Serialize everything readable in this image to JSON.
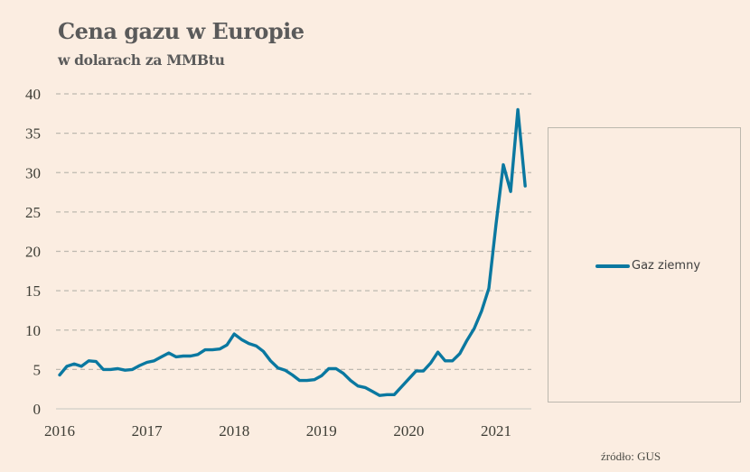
{
  "chart_data": {
    "type": "line",
    "title": "Cena gazu w Europie",
    "subtitle": "w dolarach za MMBtu",
    "xlabel": "",
    "ylabel": "",
    "ylim": [
      0,
      40
    ],
    "yticks": [
      0,
      5,
      10,
      15,
      20,
      25,
      30,
      35,
      40
    ],
    "xticks": [
      "2016",
      "2017",
      "2018",
      "2019",
      "2020",
      "2021"
    ],
    "x_start": "2016-01",
    "x_frequency": "monthly",
    "grid": "horizontal-dashed",
    "legend_position": "right",
    "series": [
      {
        "name": "Gaz ziemny",
        "color": "#0a78a0",
        "values": [
          4.3,
          5.4,
          5.7,
          5.4,
          6.1,
          6.0,
          5.0,
          5.0,
          5.1,
          4.9,
          5.0,
          5.5,
          5.9,
          6.1,
          6.6,
          7.1,
          6.6,
          6.7,
          6.7,
          6.9,
          7.5,
          7.5,
          7.6,
          8.1,
          9.5,
          8.8,
          8.3,
          8.0,
          7.3,
          6.1,
          5.2,
          4.9,
          4.3,
          3.6,
          3.6,
          3.7,
          4.2,
          5.1,
          5.1,
          4.5,
          3.6,
          2.9,
          2.7,
          2.2,
          1.7,
          1.8,
          1.8,
          2.8,
          3.8,
          4.8,
          4.8,
          5.8,
          7.2,
          6.1,
          6.1,
          7.0,
          8.7,
          10.2,
          12.4,
          15.3,
          23.5,
          31.0,
          27.6,
          38.0,
          28.3
        ]
      }
    ],
    "source": "źródło: GUS"
  },
  "colors": {
    "background": "#fbede1",
    "line": "#0a78a0",
    "grid": "#bdb9b0",
    "text": "#5a5a5a"
  }
}
